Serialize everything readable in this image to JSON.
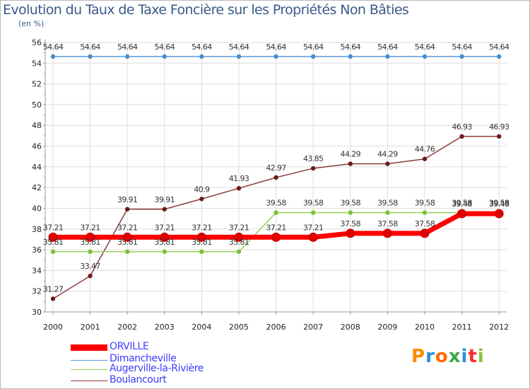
{
  "title": "Evolution du Taux de Taxe Foncière sur les Propriétés Non Bâties",
  "unit": "(en %)",
  "logo": {
    "text": "Proxiti",
    "colors": [
      "#ff8a00",
      "#2a8fe0",
      "#ff6a00",
      "#3aa64a",
      "#2a8fe0",
      "#ff2a2a",
      "#8ac13f"
    ]
  },
  "chart_data": {
    "type": "line",
    "title": "Evolution du Taux de Taxe Foncière sur les Propriétés Non Bâties",
    "ylabel": "(en %)",
    "xlabel": "",
    "x": [
      "2000",
      "2001",
      "2002",
      "2003",
      "2004",
      "2005",
      "2006",
      "2007",
      "2008",
      "2009",
      "2010",
      "2011",
      "2012"
    ],
    "ylim": [
      30,
      56
    ],
    "yticks": [
      "30",
      "32",
      "34",
      "36",
      "38",
      "40",
      "42",
      "44",
      "46",
      "48",
      "50",
      "52",
      "54",
      "56"
    ],
    "grid": true,
    "series": [
      {
        "name": "Dimancheville",
        "color": "#5b9bd5",
        "marker": "#4a8ec8",
        "values": [
          54.64,
          54.64,
          54.64,
          54.64,
          54.64,
          54.64,
          54.64,
          54.64,
          54.64,
          54.64,
          54.64,
          54.64,
          54.64
        ],
        "labels": [
          "54.64",
          "54.64",
          "54.64",
          "54.64",
          "54.64",
          "54.64",
          "54.64",
          "54.64",
          "54.64",
          "54.64",
          "54.64",
          "54.64",
          "54.64"
        ]
      },
      {
        "name": "Boulancourt",
        "color": "#8b3a3a",
        "marker": "#6b1a1a",
        "values": [
          31.27,
          33.47,
          39.91,
          39.91,
          40.9,
          41.93,
          42.97,
          43.85,
          44.29,
          44.29,
          44.76,
          46.93,
          46.93
        ],
        "labels": [
          "31.27",
          "33.47",
          "39.91",
          "39.91",
          "40.9",
          "41.93",
          "42.97",
          "43.85",
          "44.29",
          "44.29",
          "44.76",
          "46.93",
          "46.93"
        ]
      },
      {
        "name": "Augerville-la-Rivière",
        "color": "#9acd5a",
        "marker": "#7cc234",
        "values": [
          35.81,
          35.81,
          35.81,
          35.81,
          35.81,
          35.81,
          39.58,
          39.58,
          39.58,
          39.58,
          39.58,
          39.58,
          39.58
        ],
        "labels": [
          "35.81",
          "35.81",
          "35.81",
          "35.81",
          "35.81",
          "35.81",
          "39.58",
          "39.58",
          "39.58",
          "39.58",
          "39.58",
          "39.58",
          "39.58"
        ]
      },
      {
        "name": "ORVILLE",
        "color": "#ff0000",
        "marker": "#e00000",
        "values": [
          37.21,
          37.21,
          37.21,
          37.21,
          37.21,
          37.21,
          37.21,
          37.21,
          37.58,
          37.58,
          37.58,
          39.48,
          39.48
        ],
        "labels": [
          "37.21",
          "37.21",
          "37.21",
          "37.21",
          "37.21",
          "37.21",
          "37.21",
          "37.21",
          "37.58",
          "37.58",
          "37.58",
          "39.48",
          "39.48"
        ]
      }
    ],
    "legend": [
      "ORVILLE",
      "Dimancheville",
      "Augerville-la-Rivière",
      "Boulancourt"
    ]
  }
}
